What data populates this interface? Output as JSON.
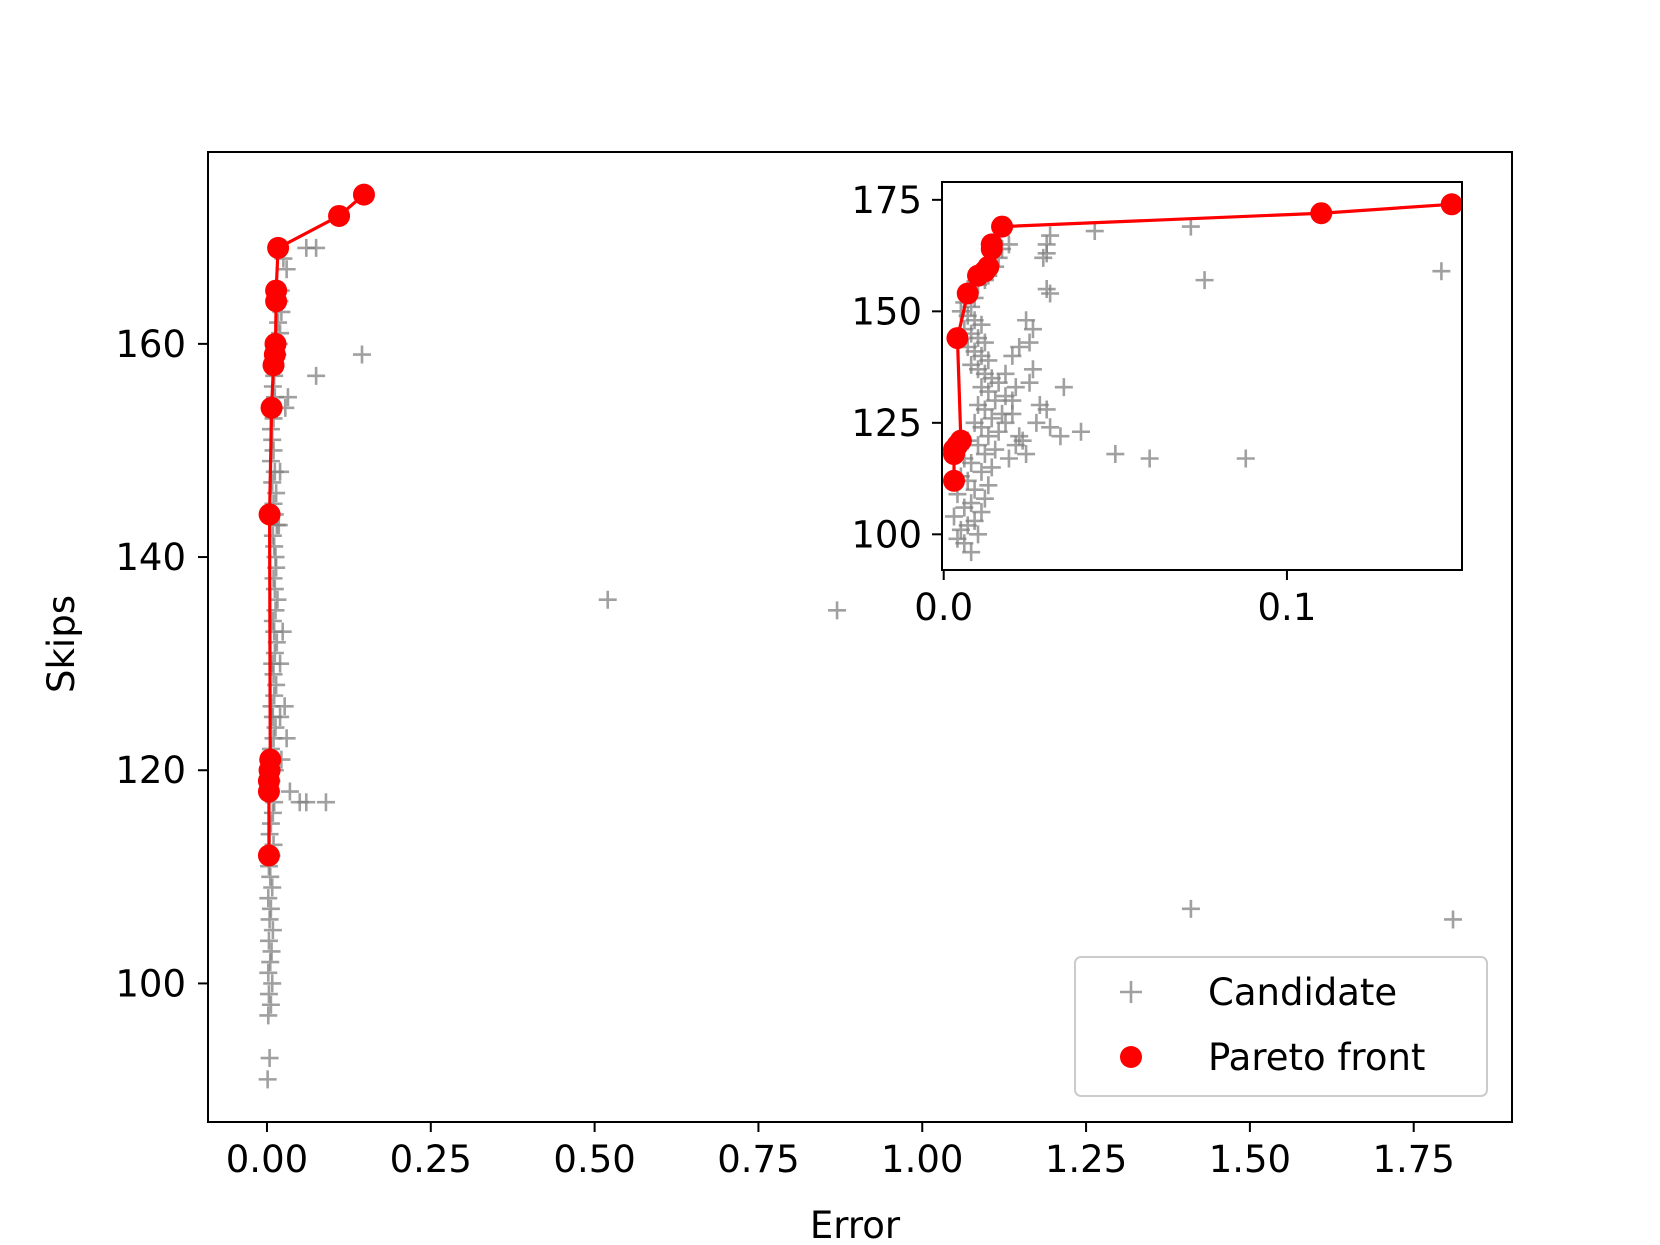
{
  "chart_data": {
    "type": "scatter",
    "xlabel": "Error",
    "ylabel": "Skips",
    "xlim": [
      -0.09,
      1.9
    ],
    "ylim": [
      87,
      178
    ],
    "xticks": [
      0.0,
      0.25,
      0.5,
      0.75,
      1.0,
      1.25,
      1.5,
      1.75
    ],
    "xtick_labels": [
      "0.00",
      "0.25",
      "0.50",
      "0.75",
      "1.00",
      "1.25",
      "1.50",
      "1.75"
    ],
    "yticks": [
      100,
      120,
      140,
      160
    ],
    "ytick_labels": [
      "100",
      "120",
      "140",
      "160"
    ],
    "legend": {
      "placement": "lower-right",
      "entries": [
        "Candidate",
        "Pareto front"
      ]
    },
    "colors": {
      "candidate": "#808080",
      "pareto": "#ff0000"
    },
    "series": [
      {
        "name": "Candidate",
        "marker": "plus",
        "points": [
          [
            0.001,
            91
          ],
          [
            0.004,
            93
          ],
          [
            0.002,
            97
          ],
          [
            0.006,
            98
          ],
          [
            0.003,
            99
          ],
          [
            0.008,
            100
          ],
          [
            0.002,
            101
          ],
          [
            0.005,
            102
          ],
          [
            0.007,
            103
          ],
          [
            0.003,
            104
          ],
          [
            0.009,
            105
          ],
          [
            0.004,
            106
          ],
          [
            0.006,
            107
          ],
          [
            0.002,
            108
          ],
          [
            0.008,
            109
          ],
          [
            0.005,
            110
          ],
          [
            0.003,
            111
          ],
          [
            0.007,
            112
          ],
          [
            0.01,
            113
          ],
          [
            0.004,
            114
          ],
          [
            0.006,
            115
          ],
          [
            0.009,
            116
          ],
          [
            0.011,
            117
          ],
          [
            0.005,
            118
          ],
          [
            0.007,
            119
          ],
          [
            0.012,
            120
          ],
          [
            0.008,
            121
          ],
          [
            0.006,
            122
          ],
          [
            0.01,
            123
          ],
          [
            0.013,
            124
          ],
          [
            0.009,
            125
          ],
          [
            0.007,
            126
          ],
          [
            0.011,
            127
          ],
          [
            0.014,
            128
          ],
          [
            0.01,
            129
          ],
          [
            0.008,
            130
          ],
          [
            0.012,
            131
          ],
          [
            0.015,
            132
          ],
          [
            0.011,
            133
          ],
          [
            0.009,
            134
          ],
          [
            0.013,
            135
          ],
          [
            0.016,
            136
          ],
          [
            0.012,
            137
          ],
          [
            0.01,
            138
          ],
          [
            0.014,
            139
          ],
          [
            0.013,
            140
          ],
          [
            0.011,
            141
          ],
          [
            0.009,
            142
          ],
          [
            0.015,
            143
          ],
          [
            0.012,
            144
          ],
          [
            0.01,
            145
          ],
          [
            0.014,
            146
          ],
          [
            0.008,
            147
          ],
          [
            0.012,
            148
          ],
          [
            0.006,
            149
          ],
          [
            0.01,
            150
          ],
          [
            0.008,
            151
          ],
          [
            0.006,
            152
          ],
          [
            0.01,
            153
          ],
          [
            0.007,
            154
          ],
          [
            0.012,
            155
          ],
          [
            0.009,
            156
          ],
          [
            0.011,
            157
          ],
          [
            0.013,
            158
          ],
          [
            0.016,
            159
          ],
          [
            0.018,
            160
          ],
          [
            0.02,
            161
          ],
          [
            0.017,
            162
          ],
          [
            0.022,
            163
          ],
          [
            0.019,
            164
          ],
          [
            0.021,
            165
          ],
          [
            0.03,
            167
          ],
          [
            0.025,
            168
          ],
          [
            0.032,
            155
          ],
          [
            0.028,
            154
          ],
          [
            0.02,
            148
          ],
          [
            0.018,
            143
          ],
          [
            0.024,
            133
          ],
          [
            0.02,
            130
          ],
          [
            0.027,
            126
          ],
          [
            0.03,
            123
          ],
          [
            0.022,
            121
          ],
          [
            0.02,
            125
          ],
          [
            0.035,
            118
          ],
          [
            0.05,
            117
          ],
          [
            0.06,
            117
          ],
          [
            0.09,
            117
          ],
          [
            0.075,
            157
          ],
          [
            0.145,
            159
          ],
          [
            0.06,
            169
          ],
          [
            0.075,
            169
          ],
          [
            0.52,
            136
          ],
          [
            0.87,
            135
          ],
          [
            1.41,
            107
          ],
          [
            1.81,
            106
          ]
        ]
      },
      {
        "name": "Pareto front",
        "marker": "circle",
        "points": [
          [
            0.003,
            112
          ],
          [
            0.003,
            118
          ],
          [
            0.003,
            119
          ],
          [
            0.004,
            120
          ],
          [
            0.005,
            121
          ],
          [
            0.004,
            144
          ],
          [
            0.007,
            154
          ],
          [
            0.01,
            158
          ],
          [
            0.012,
            159
          ],
          [
            0.013,
            160
          ],
          [
            0.014,
            164
          ],
          [
            0.014,
            165
          ],
          [
            0.017,
            169
          ],
          [
            0.11,
            172
          ],
          [
            0.148,
            174
          ]
        ]
      }
    ],
    "inset": {
      "xlim": [
        -0.0005,
        0.151
      ],
      "ylim": [
        92,
        179
      ],
      "xticks": [
        0.0,
        0.1
      ],
      "xtick_labels": [
        "0.0",
        "0.1"
      ],
      "yticks": [
        100,
        125,
        150,
        175
      ],
      "ytick_labels": [
        "100",
        "125",
        "150",
        "175"
      ],
      "candidate_points": [
        [
          0.008,
          96
        ],
        [
          0.006,
          98
        ],
        [
          0.004,
          99
        ],
        [
          0.01,
          100
        ],
        [
          0.005,
          101
        ],
        [
          0.007,
          102
        ],
        [
          0.009,
          103
        ],
        [
          0.003,
          104
        ],
        [
          0.011,
          105
        ],
        [
          0.006,
          106
        ],
        [
          0.008,
          107
        ],
        [
          0.012,
          108
        ],
        [
          0.004,
          109
        ],
        [
          0.009,
          110
        ],
        [
          0.013,
          111
        ],
        [
          0.007,
          112
        ],
        [
          0.005,
          113
        ],
        [
          0.011,
          114
        ],
        [
          0.014,
          115
        ],
        [
          0.008,
          116
        ],
        [
          0.006,
          117
        ],
        [
          0.012,
          118
        ],
        [
          0.015,
          119
        ],
        [
          0.01,
          120
        ],
        [
          0.007,
          121
        ],
        [
          0.013,
          122
        ],
        [
          0.016,
          123
        ],
        [
          0.011,
          124
        ],
        [
          0.009,
          125
        ],
        [
          0.014,
          126
        ],
        [
          0.017,
          127
        ],
        [
          0.012,
          128
        ],
        [
          0.01,
          129
        ],
        [
          0.015,
          130
        ],
        [
          0.018,
          131
        ],
        [
          0.013,
          132
        ],
        [
          0.011,
          133
        ],
        [
          0.016,
          134
        ],
        [
          0.014,
          135
        ],
        [
          0.012,
          136
        ],
        [
          0.01,
          137
        ],
        [
          0.008,
          138
        ],
        [
          0.013,
          139
        ],
        [
          0.011,
          140
        ],
        [
          0.009,
          141
        ],
        [
          0.007,
          142
        ],
        [
          0.012,
          143
        ],
        [
          0.01,
          144
        ],
        [
          0.008,
          145
        ],
        [
          0.006,
          146
        ],
        [
          0.011,
          147
        ],
        [
          0.009,
          148
        ],
        [
          0.007,
          149
        ],
        [
          0.005,
          150
        ],
        [
          0.008,
          151
        ],
        [
          0.006,
          152
        ],
        [
          0.009,
          153
        ],
        [
          0.007,
          155
        ],
        [
          0.01,
          156
        ],
        [
          0.012,
          157
        ],
        [
          0.013,
          158
        ],
        [
          0.015,
          160
        ],
        [
          0.016,
          162
        ],
        [
          0.014,
          163
        ],
        [
          0.017,
          164
        ],
        [
          0.019,
          165
        ],
        [
          0.02,
          140
        ],
        [
          0.022,
          142
        ],
        [
          0.025,
          143
        ],
        [
          0.026,
          146
        ],
        [
          0.024,
          148
        ],
        [
          0.03,
          155
        ],
        [
          0.031,
          154
        ],
        [
          0.029,
          162
        ],
        [
          0.03,
          165
        ],
        [
          0.031,
          167
        ],
        [
          0.03,
          163
        ],
        [
          0.018,
          125
        ],
        [
          0.02,
          127
        ],
        [
          0.022,
          122
        ],
        [
          0.021,
          120
        ],
        [
          0.024,
          118
        ],
        [
          0.019,
          117
        ],
        [
          0.023,
          121
        ],
        [
          0.027,
          125
        ],
        [
          0.028,
          129
        ],
        [
          0.026,
          137
        ],
        [
          0.03,
          128
        ],
        [
          0.035,
          133
        ],
        [
          0.031,
          124
        ],
        [
          0.04,
          123
        ],
        [
          0.05,
          118
        ],
        [
          0.06,
          117
        ],
        [
          0.034,
          122
        ],
        [
          0.025,
          134
        ],
        [
          0.02,
          130
        ],
        [
          0.018,
          136
        ],
        [
          0.021,
          133
        ],
        [
          0.088,
          117
        ],
        [
          0.044,
          168
        ],
        [
          0.072,
          169
        ],
        [
          0.076,
          157
        ],
        [
          0.145,
          159
        ]
      ]
    }
  }
}
